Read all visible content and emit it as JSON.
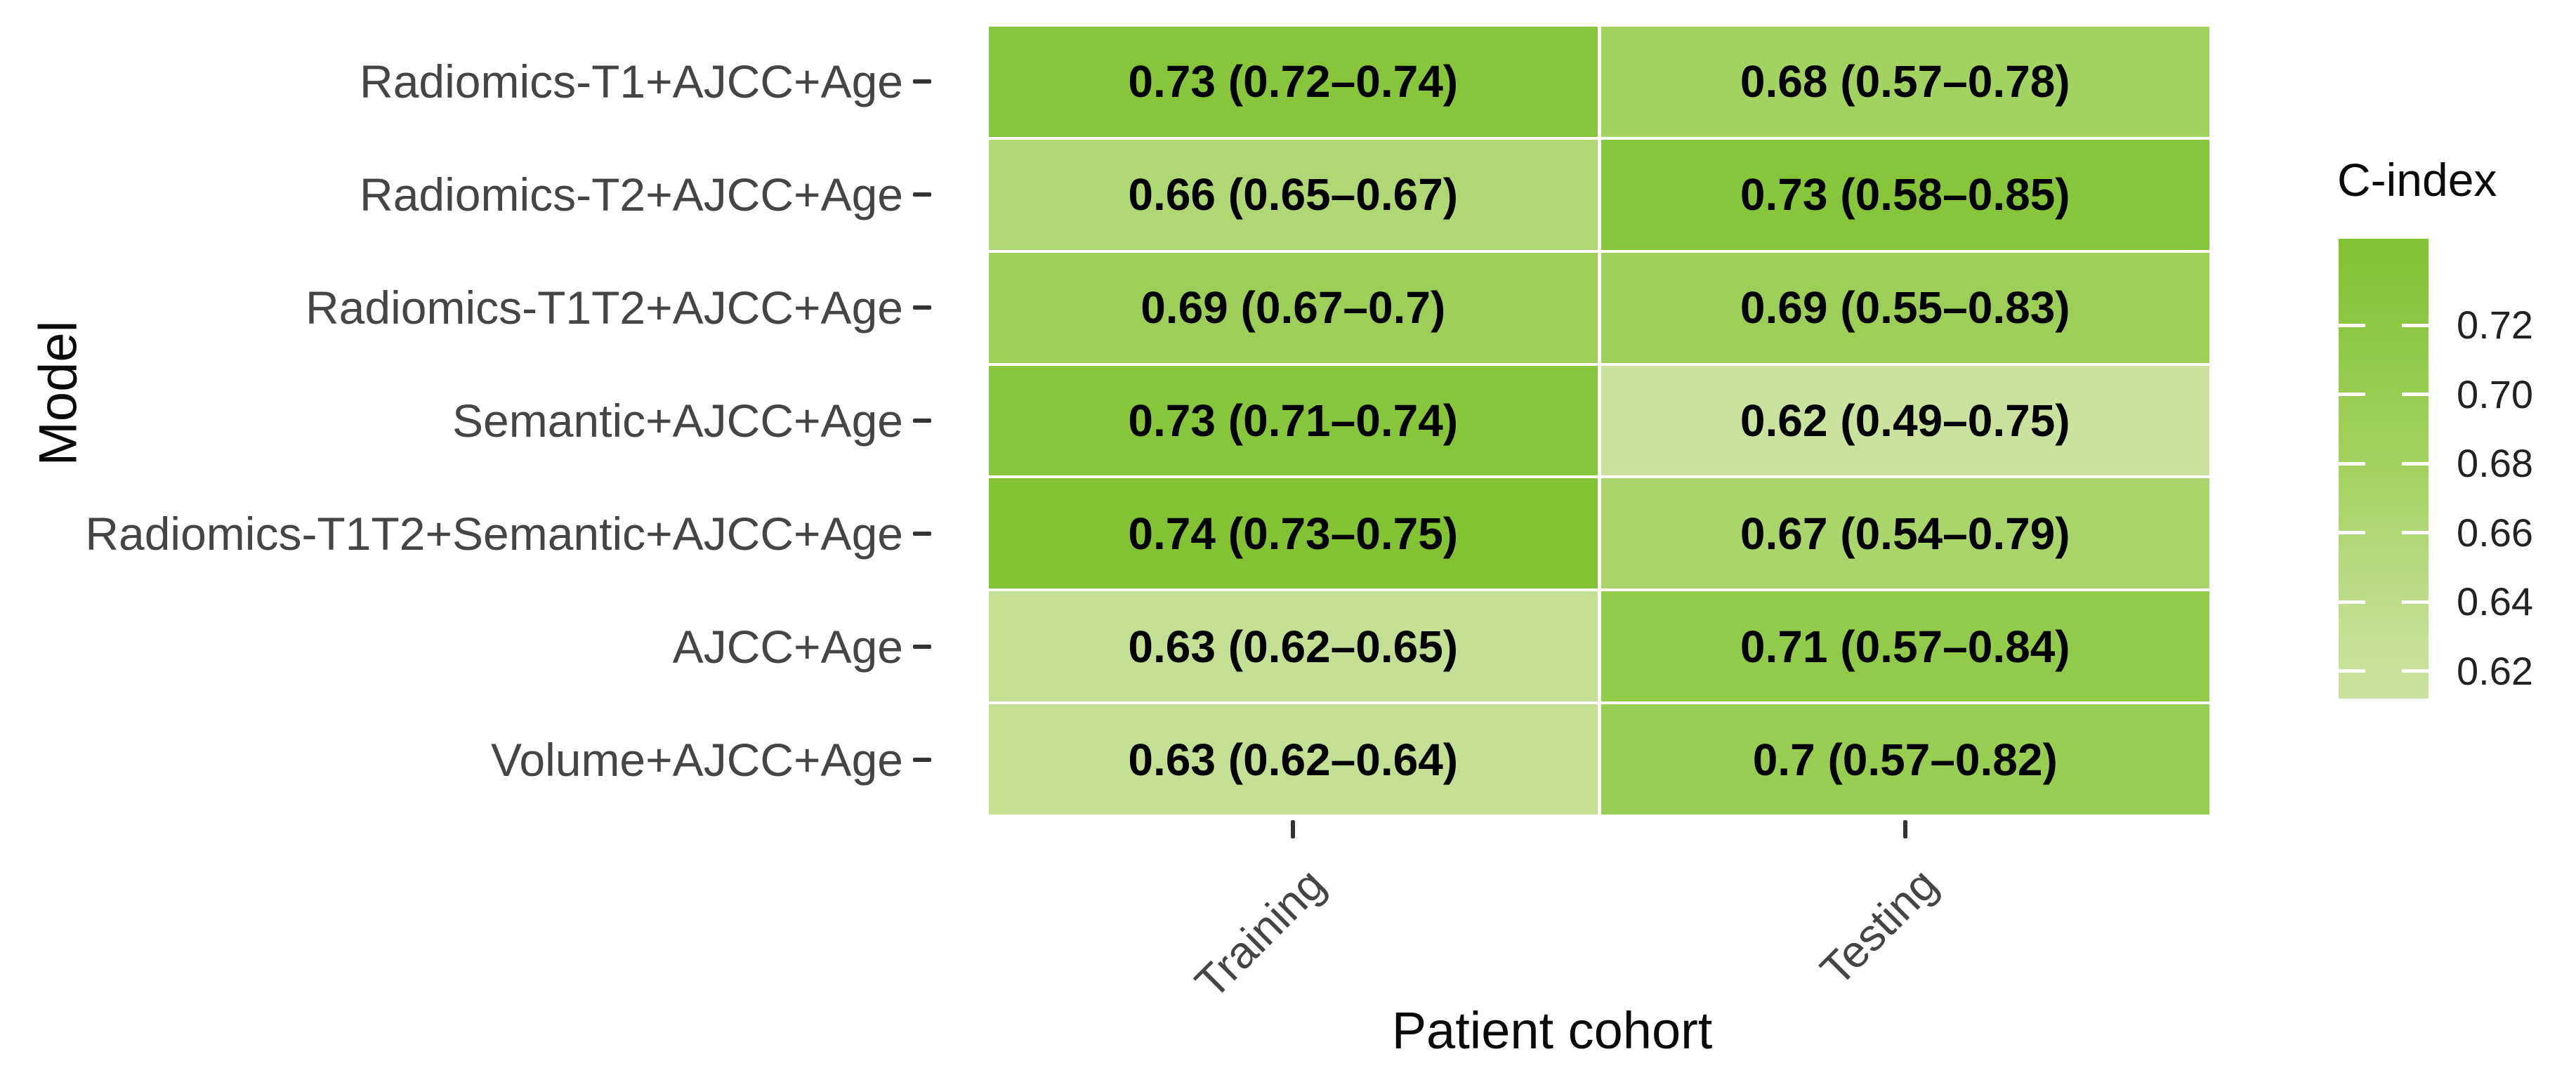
{
  "figure": {
    "y_axis_title": "Model",
    "x_axis_title": "Patient cohort"
  },
  "chart_data": {
    "type": "heatmap",
    "title": "",
    "xlabel": "Patient cohort",
    "ylabel": "Model",
    "x_categories": [
      "Training",
      "Testing"
    ],
    "y_categories": [
      "Radiomics-T1+AJCC+Age",
      "Radiomics-T2+AJCC+Age",
      "Radiomics-T1T2+AJCC+Age",
      "Semantic+AJCC+Age",
      "Radiomics-T1T2+Semantic+AJCC+Age",
      "AJCC+Age",
      "Volume+AJCC+Age"
    ],
    "series": [
      {
        "name": "Training",
        "values": [
          0.73,
          0.66,
          0.69,
          0.73,
          0.74,
          0.63,
          0.63
        ],
        "labels": [
          "0.73 (0.72–0.74)",
          "0.66 (0.65–0.67)",
          "0.69 (0.67–0.7)",
          "0.73 (0.71–0.74)",
          "0.74 (0.73–0.75)",
          "0.63 (0.62–0.65)",
          "0.63 (0.62–0.64)"
        ]
      },
      {
        "name": "Testing",
        "values": [
          0.68,
          0.73,
          0.69,
          0.62,
          0.67,
          0.71,
          0.7
        ],
        "labels": [
          "0.68 (0.57–0.78)",
          "0.73 (0.58–0.85)",
          "0.69 (0.55–0.83)",
          "0.62 (0.49–0.75)",
          "0.67 (0.54–0.79)",
          "0.71 (0.57–0.84)",
          "0.7 (0.57–0.82)"
        ]
      }
    ],
    "legend": {
      "title": "C-index",
      "position": "right",
      "tick_labels": [
        "0.72",
        "0.70",
        "0.68",
        "0.66",
        "0.64",
        "0.62"
      ],
      "tick_values": [
        0.72,
        0.7,
        0.68,
        0.66,
        0.64,
        0.62
      ],
      "bar_range": [
        0.612,
        0.745
      ]
    },
    "color_scale": {
      "low": "#C9E29E",
      "mid": "#A2D25F",
      "high": "#82C233",
      "stops": [
        [
          0.62,
          "#C9E29E"
        ],
        [
          0.68,
          "#A2D25F"
        ],
        [
          0.74,
          "#82C233"
        ]
      ]
    },
    "grid": false
  }
}
